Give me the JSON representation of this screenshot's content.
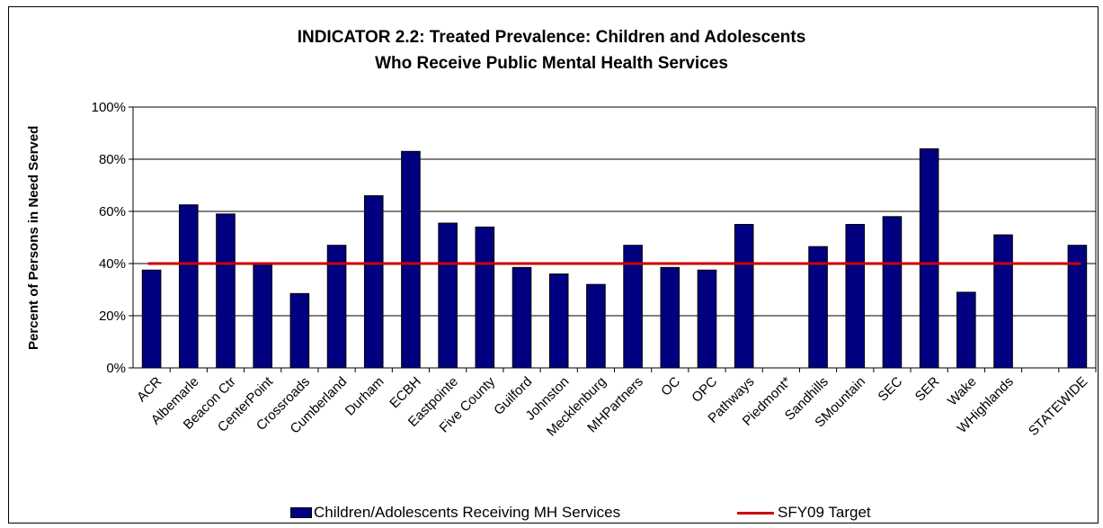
{
  "chart_data": {
    "type": "bar",
    "title_lines": [
      "INDICATOR 2.2: Treated Prevalence: Children and Adolescents",
      "Who Receive Public Mental Health Services"
    ],
    "xlabel": "",
    "ylabel": "Percent of Persons in Need Served",
    "ylim": [
      0,
      100
    ],
    "yticks": [
      "0%",
      "20%",
      "40%",
      "60%",
      "80%",
      "100%"
    ],
    "grid": "horizontal",
    "categories": [
      "ACR",
      "Albemarle",
      "Beacon Ctr",
      "CenterPoint",
      "Crossroads",
      "Cumberland",
      "Durham",
      "ECBH",
      "Eastpointe",
      "Five County",
      "Guilford",
      "Johnston",
      "Mecklenburg",
      "MHPartners",
      "OC",
      "OPC",
      "Pathways",
      "Piedmont*",
      "Sandhills",
      "SMountain",
      "SEC",
      "SER",
      "Wake",
      "WHighlands",
      "",
      "STATEWIDE"
    ],
    "series": [
      {
        "name": "Children/Adolescents Receiving MH Services",
        "type": "bar",
        "color": "#000080",
        "values": [
          37.5,
          62.5,
          59,
          40,
          28.5,
          47,
          66,
          83,
          55.5,
          54,
          38.5,
          36,
          32,
          47,
          38.5,
          37.5,
          55,
          null,
          46.5,
          55,
          58,
          84,
          29,
          51,
          null,
          47
        ]
      },
      {
        "name": "SFY09 Target",
        "type": "line",
        "color": "#cc0000",
        "value": 40
      }
    ],
    "legend_position": "bottom"
  }
}
